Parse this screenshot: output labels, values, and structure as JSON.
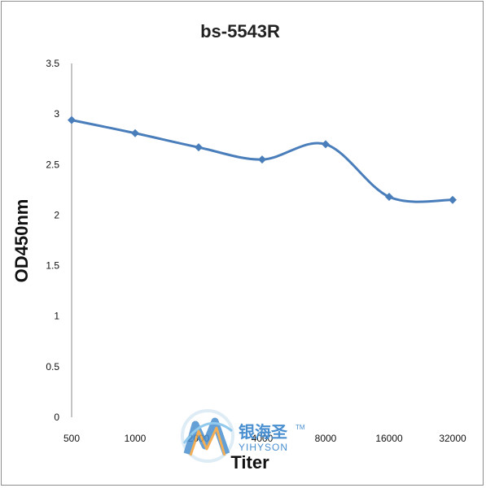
{
  "chart_data": {
    "type": "line",
    "title": "bs-5543R",
    "xlabel": "Titer",
    "ylabel": "OD450nm",
    "categories": [
      "500",
      "1000",
      "2000",
      "4000",
      "8000",
      "16000",
      "32000"
    ],
    "series": [
      {
        "values": [
          2.94,
          2.81,
          2.67,
          2.55,
          2.7,
          2.18,
          2.15
        ]
      }
    ],
    "ylim": [
      0,
      3.5
    ],
    "yticks": [
      "0",
      "0.5",
      "1",
      "1.5",
      "2",
      "2.5",
      "3",
      "3.5"
    ],
    "grid": false,
    "legend": "none",
    "line_color": "#4a7ebb"
  },
  "watermark": {
    "chinese": "银海圣",
    "english": "YIHYSON",
    "mark": "TM",
    "icon": "yihyson-logo-icon"
  }
}
